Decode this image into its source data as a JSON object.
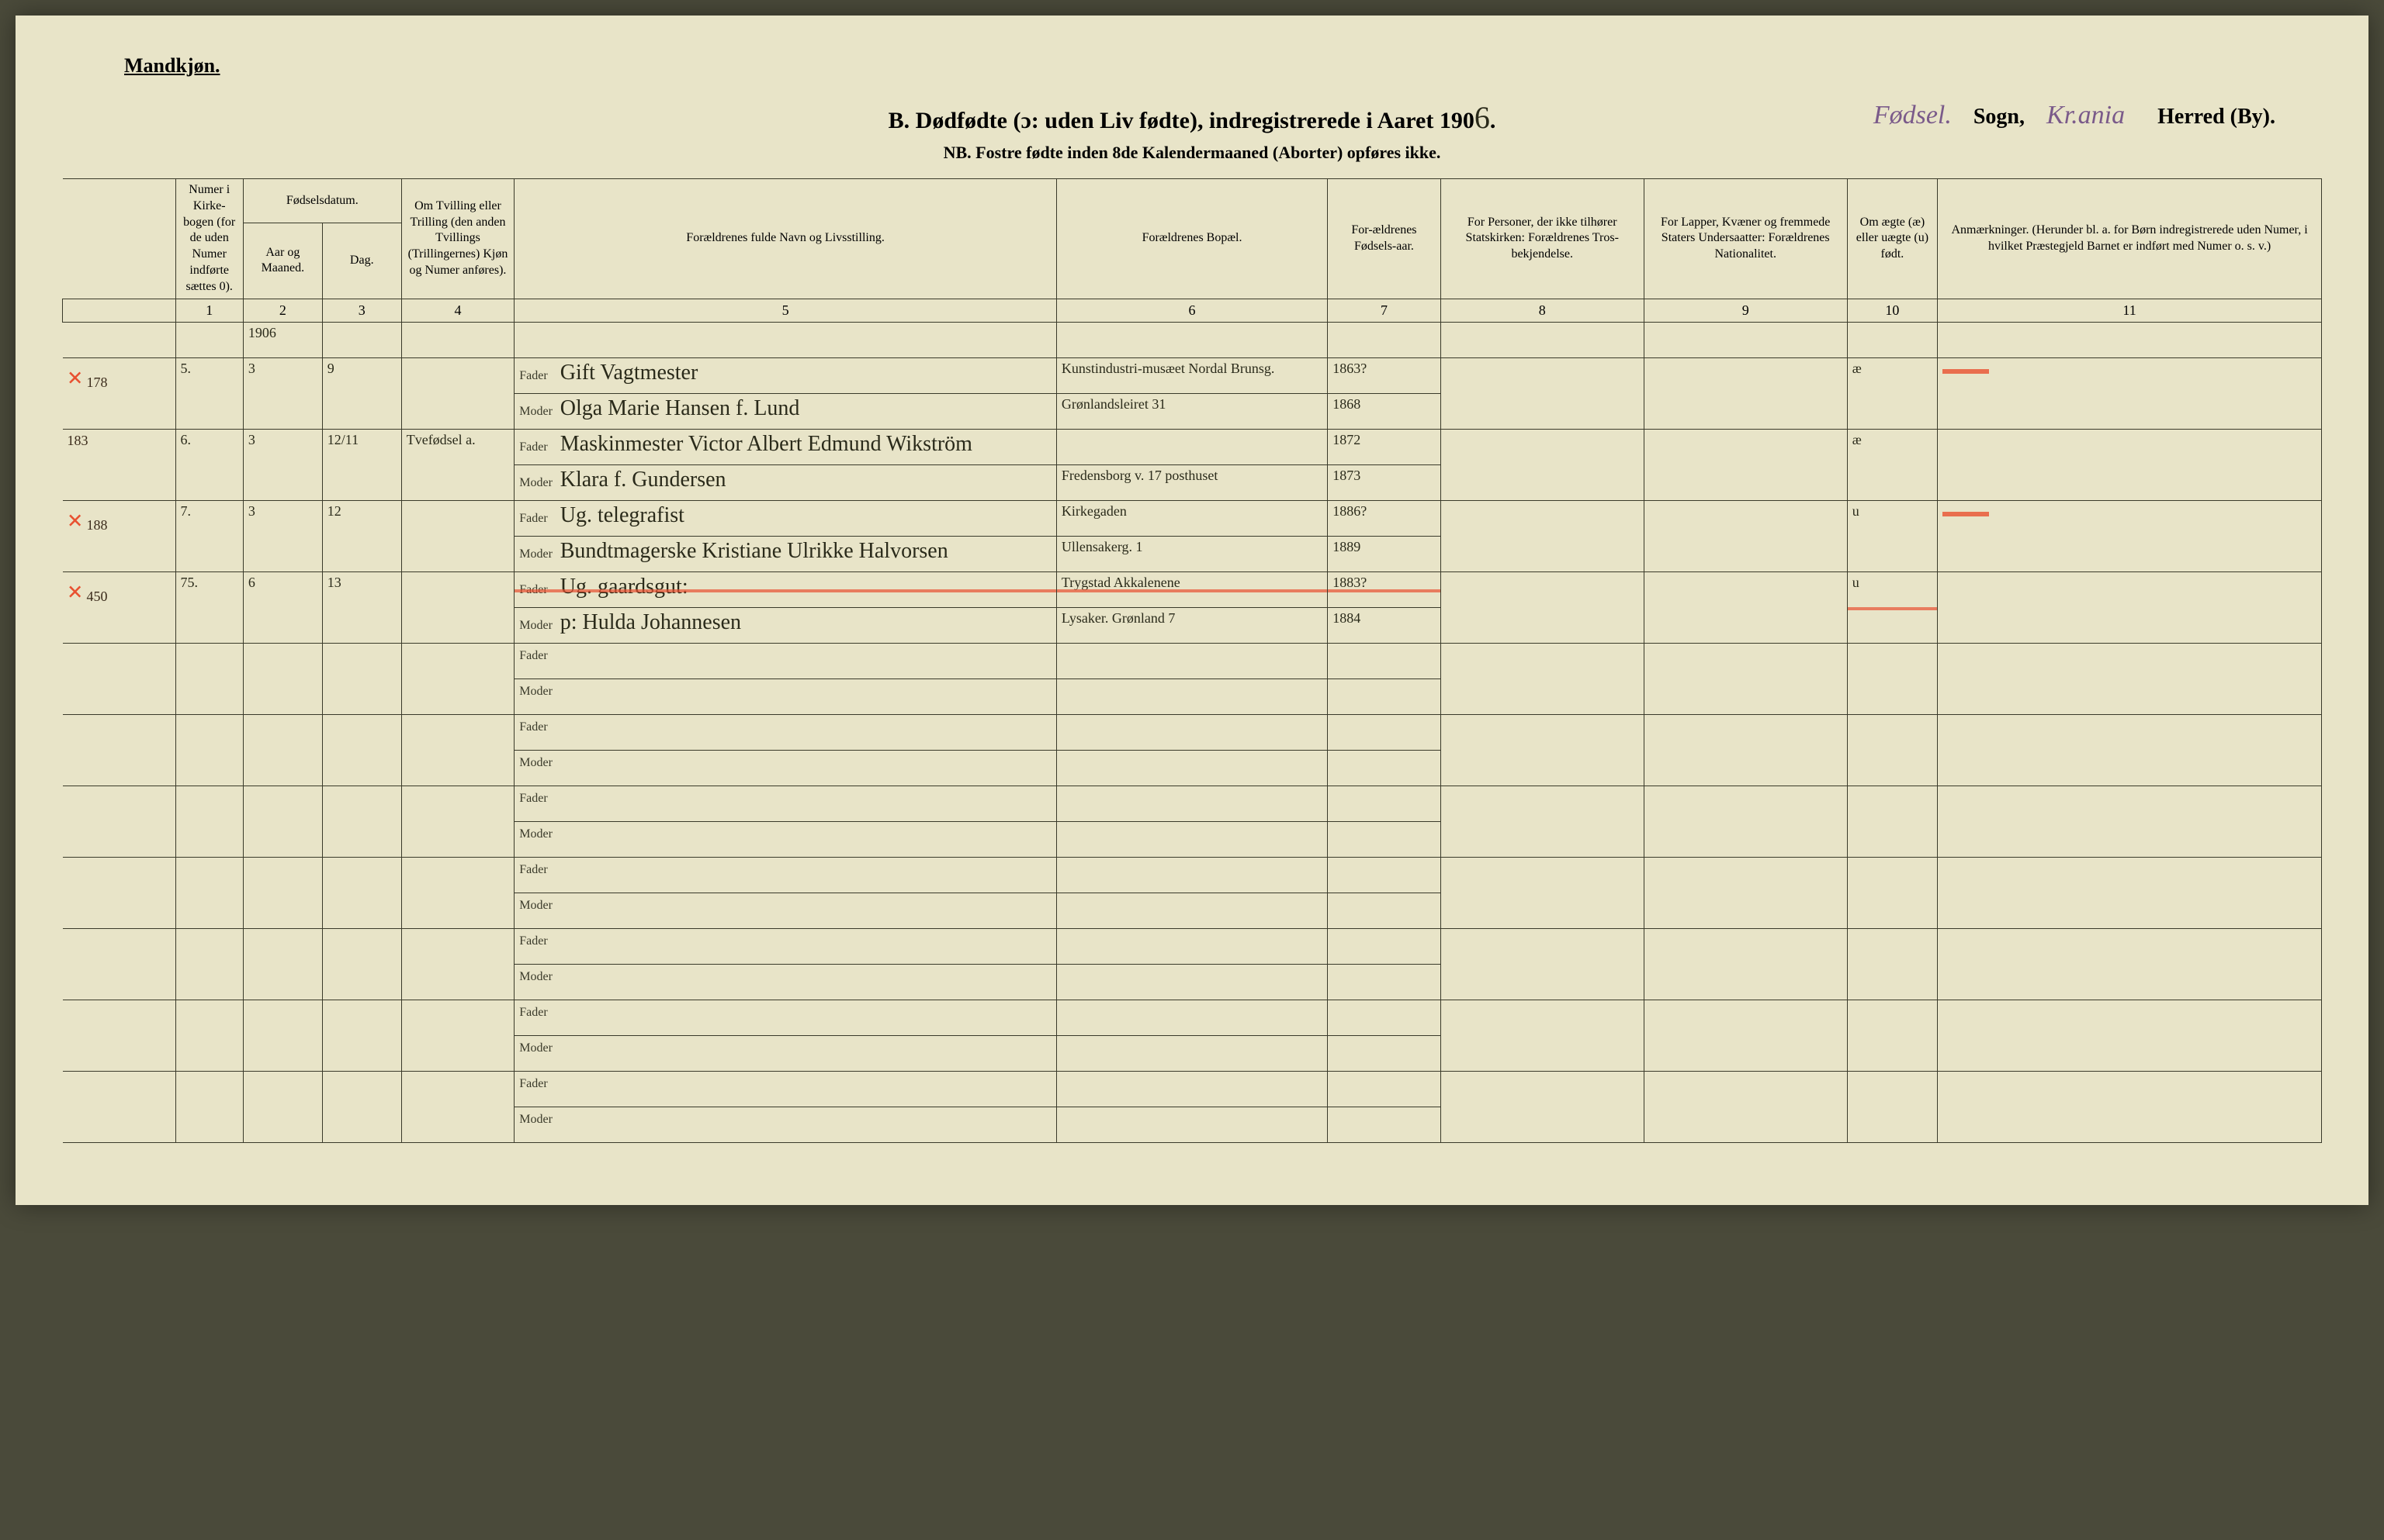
{
  "header": {
    "gender": "Mandkjøn.",
    "title_prefix": "B.  Dødfødte (ɔ: uden Liv fødte), indregistrerede i Aaret 190",
    "year_digit": "6",
    "title_suffix": ".",
    "sogn_hand": "Fødsel.",
    "sogn_label": "Sogn,",
    "herred_hand": "Kr.ania",
    "herred_label": "Herred (By).",
    "nb_line": "NB.  Fostre fødte inden 8de Kalendermaaned (Aborter) opføres ikke."
  },
  "columns": {
    "numer": "Numer i Kirke-bogen (for de uden Numer indførte sættes 0).",
    "fodsel_header": "Fødselsdatum.",
    "aar": "Aar og Maaned.",
    "dag": "Dag.",
    "tvilling": "Om Tvilling eller Trilling (den anden Tvillings (Trillingernes) Kjøn og Numer anføres).",
    "navn": "Forældrenes fulde Navn og Livsstilling.",
    "bopael": "Forældrenes Bopæl.",
    "fodselaar": "For-ældrenes Fødsels-aar.",
    "stats": "For Personer, der ikke tilhører Statskirken: Forældrenes Tros-bekjendelse.",
    "lapper": "For Lapper, Kvæner og fremmede Staters Undersaatter: Forældrenes Nationalitet.",
    "aegte": "Om ægte (æ) eller uægte (u) født.",
    "anm": "Anmærkninger. (Herunder bl. a. for Børn indregistrerede uden Numer, i hvilket Præstegjeld Barnet er indført med Numer o. s. v.)"
  },
  "colnums": [
    "",
    "1",
    "2",
    "3",
    "4",
    "5",
    "6",
    "7",
    "8",
    "9",
    "10",
    "11"
  ],
  "year_row": "1906",
  "fader_label": "Fader",
  "moder_label": "Moder",
  "entries": [
    {
      "margin": "178",
      "margin_mark": "×",
      "numer": "5.",
      "aar": "3",
      "dag": "9",
      "tvill": "",
      "fader_navn": "Gift Vagtmester",
      "moder_navn": "Olga Marie Hansen f. Lund",
      "fader_bopael": "Kunstindustri-musæet Nordal Brunsg.",
      "moder_bopael": "Grønlandsleiret 31",
      "fader_aar": "1863?",
      "moder_aar": "1868",
      "aegte": "æ",
      "anm_mark": true
    },
    {
      "margin": "183",
      "margin_mark": "",
      "numer": "6.",
      "aar": "3",
      "dag": "12/11",
      "tvill": "Tvefødsel a.",
      "fader_navn": "Maskinmester Victor Albert Edmund Wikström",
      "moder_navn": "Klara f. Gundersen",
      "fader_bopael": "",
      "moder_bopael": "Fredensborg v. 17 posthuset",
      "fader_aar": "1872",
      "moder_aar": "1873",
      "aegte": "æ",
      "anm_mark": false
    },
    {
      "margin": "188",
      "margin_mark": "×",
      "numer": "7.",
      "aar": "3",
      "dag": "12",
      "tvill": "",
      "fader_navn": "Ug. telegrafist",
      "moder_navn": "Bundtmagerske Kristiane Ulrikke Halvorsen",
      "fader_bopael": "Kirkegaden",
      "moder_bopael": "Ullensakerg. 1",
      "fader_aar": "1886?",
      "moder_aar": "1889",
      "aegte": "u",
      "anm_mark": true
    },
    {
      "margin": "450",
      "margin_mark": "×",
      "numer": "75.",
      "aar": "6",
      "dag": "13",
      "tvill": "",
      "fader_navn": "Ug. gaardsgut:",
      "moder_navn": "p: Hulda Johannesen",
      "fader_bopael": "Trygstad Akkalenene",
      "moder_bopael": "Lysaker. Grønland 7",
      "fader_aar": "1883?",
      "moder_aar": "1884",
      "aegte": "u",
      "anm_mark": false,
      "red_strike": true
    }
  ],
  "blank_rows": 7,
  "styling": {
    "page_bg": "#e8e4c8",
    "ink": "#2a2a1a",
    "red": "#e85030",
    "purple": "#7a5a8a",
    "border": "#3a3a2a"
  }
}
